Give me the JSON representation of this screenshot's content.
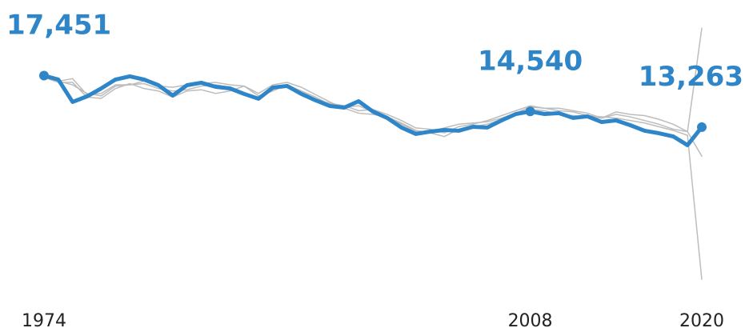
{
  "chart_data": {
    "type": "line",
    "x": [
      1974,
      1975,
      1976,
      1977,
      1978,
      1979,
      1980,
      1981,
      1982,
      1983,
      1984,
      1985,
      1986,
      1987,
      1988,
      1989,
      1990,
      1991,
      1992,
      1993,
      1994,
      1995,
      1996,
      1997,
      1998,
      1999,
      2000,
      2001,
      2002,
      2003,
      2004,
      2005,
      2006,
      2007,
      2008,
      2009,
      2010,
      2011,
      2012,
      2013,
      2014,
      2015,
      2016,
      2017,
      2018,
      2019,
      2020
    ],
    "xlim": [
      1974,
      2020
    ],
    "xticks": [
      1974,
      2008,
      2020
    ],
    "ylim": [
      0,
      22000
    ],
    "series": [
      {
        "color": "#bdbdbd",
        "values": [
          17400,
          17000,
          16700,
          16000,
          15800,
          16600,
          16700,
          17000,
          16600,
          16500,
          16700,
          16800,
          16900,
          16700,
          16600,
          16000,
          16700,
          16900,
          16500,
          15900,
          15300,
          14800,
          14400,
          14300,
          14100,
          13600,
          13000,
          12800,
          12500,
          13100,
          13300,
          13500,
          13900,
          14300,
          14700,
          14600,
          14300,
          14200,
          14100,
          14000,
          14300,
          14100,
          13800,
          13500,
          13100,
          12900,
          21300
        ]
      },
      {
        "color": "#bdbdbd",
        "values": [
          17300,
          16900,
          16900,
          15700,
          15600,
          16400,
          16800,
          16400,
          16200,
          15700,
          16200,
          16300,
          16000,
          16200,
          16600,
          15800,
          16200,
          16700,
          16200,
          15700,
          15100,
          14900,
          15000,
          14500,
          14100,
          13500,
          12900,
          12900,
          13200,
          13500,
          13600,
          13700,
          14000,
          14400,
          14900,
          14800,
          14600,
          14500,
          14200,
          14100,
          14000,
          13800,
          13600,
          13300,
          13000,
          12600,
          900
        ]
      },
      {
        "color": "#bdbdbd",
        "values": [
          17500,
          17000,
          17200,
          15900,
          16000,
          16700,
          16700,
          16800,
          16400,
          16200,
          16300,
          16600,
          16700,
          16500,
          16000,
          15700,
          16300,
          16600,
          16200,
          15500,
          15200,
          15000,
          14600,
          14700,
          14300,
          13800,
          13200,
          13100,
          12800,
          13300,
          13500,
          13800,
          14200,
          14600,
          15000,
          14800,
          14800,
          14600,
          14400,
          14000,
          14500,
          14300,
          14200,
          13900,
          13500,
          12900,
          10900
        ]
      },
      {
        "color": "#2e86c9",
        "highlight": true,
        "values": [
          17451,
          17130,
          15310,
          15760,
          16410,
          17130,
          17390,
          17130,
          16670,
          15830,
          16670,
          16870,
          16540,
          16410,
          15960,
          15570,
          16480,
          16610,
          15960,
          15440,
          14980,
          14850,
          15370,
          14530,
          14010,
          13230,
          12710,
          12900,
          13030,
          12970,
          13290,
          13230,
          13810,
          14330,
          14540,
          14330,
          14400,
          14010,
          14140,
          13680,
          13810,
          13420,
          12970,
          12770,
          12510,
          11800,
          13263
        ],
        "value_labels": [
          "17,451",
          null,
          null,
          null,
          null,
          null,
          null,
          null,
          null,
          null,
          null,
          null,
          null,
          null,
          null,
          null,
          null,
          null,
          null,
          null,
          null,
          null,
          null,
          null,
          null,
          null,
          null,
          null,
          null,
          null,
          null,
          null,
          null,
          null,
          "14,540",
          null,
          null,
          null,
          null,
          null,
          null,
          null,
          null,
          null,
          null,
          null,
          "13,263"
        ]
      }
    ]
  }
}
